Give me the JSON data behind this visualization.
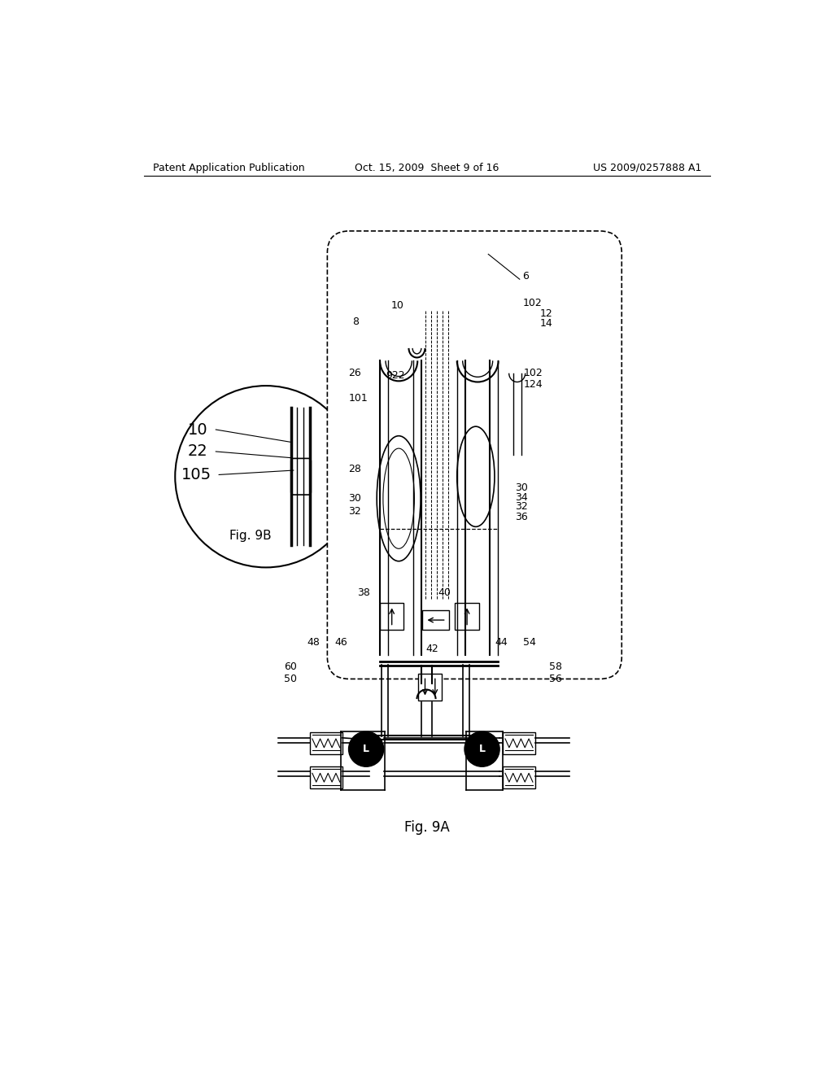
{
  "bg_color": "#ffffff",
  "header_left": "Patent Application Publication",
  "header_center": "Oct. 15, 2009  Sheet 9 of 16",
  "header_right": "US 2009/0257888 A1"
}
